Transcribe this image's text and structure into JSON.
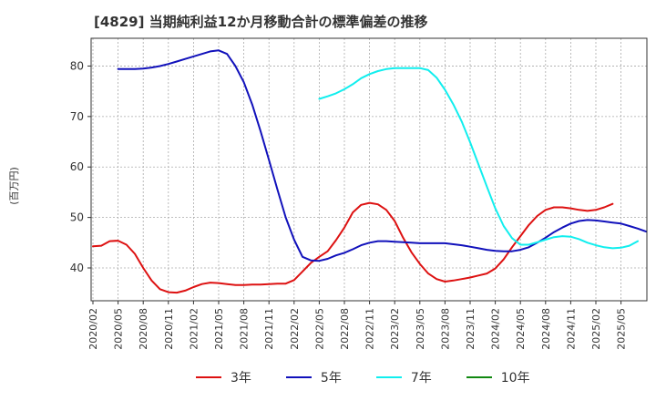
{
  "chart_data": {
    "type": "line",
    "title": "[4829]  当期純利益12か月移動合計の標準偏差の推移",
    "xlabel": "",
    "ylabel": "(百万円)",
    "ylim": [
      33.5,
      85.5
    ],
    "yticks": [
      40,
      50,
      60,
      70,
      80
    ],
    "x_start": "2020/02",
    "x_tick_labels": [
      "2020/02",
      "2020/05",
      "2020/08",
      "2020/11",
      "2021/02",
      "2021/05",
      "2021/08",
      "2021/11",
      "2022/02",
      "2022/05",
      "2022/08",
      "2022/11",
      "2023/02",
      "2023/05",
      "2023/08",
      "2023/11",
      "2024/02",
      "2024/05",
      "2024/08",
      "2024/11",
      "2025/02",
      "2025/05"
    ],
    "grid": true,
    "legend_position": "bottom",
    "series": [
      {
        "name": "3年",
        "color": "#dd1111",
        "start": "2020/02",
        "values": [
          44.3,
          44.4,
          45.3,
          45.4,
          44.6,
          42.8,
          40.0,
          37.5,
          35.8,
          35.2,
          35.1,
          35.5,
          36.2,
          36.8,
          37.1,
          37.0,
          36.8,
          36.6,
          36.6,
          36.7,
          36.7,
          36.8,
          36.9,
          36.9,
          37.6,
          39.3,
          41.0,
          42.2,
          43.3,
          45.5,
          48.0,
          51.0,
          52.5,
          52.9,
          52.6,
          51.5,
          49.3,
          46.0,
          43.1,
          40.8,
          38.9,
          37.8,
          37.3,
          37.5,
          37.8,
          38.1,
          38.5,
          38.9,
          39.9,
          41.7,
          44.1,
          46.3,
          48.5,
          50.3,
          51.5,
          52.0,
          52.0,
          51.8,
          51.5,
          51.3,
          51.5,
          52.0,
          52.7
        ]
      },
      {
        "name": "5年",
        "color": "#1111bb",
        "start": "2020/05",
        "values": [
          79.4,
          79.4,
          79.4,
          79.5,
          79.7,
          80.0,
          80.4,
          80.9,
          81.4,
          81.9,
          82.4,
          82.9,
          83.1,
          82.4,
          80.0,
          76.8,
          72.4,
          67.1,
          61.4,
          55.6,
          50.0,
          45.6,
          42.2,
          41.5,
          41.4,
          41.8,
          42.5,
          43.0,
          43.7,
          44.5,
          45.0,
          45.3,
          45.3,
          45.2,
          45.1,
          45.0,
          44.9,
          44.9,
          44.9,
          44.9,
          44.7,
          44.5,
          44.2,
          43.9,
          43.6,
          43.4,
          43.3,
          43.3,
          43.6,
          44.1,
          45.0,
          46.0,
          47.1,
          48.0,
          48.8,
          49.3,
          49.5,
          49.4,
          49.2,
          49.0,
          48.8,
          48.3,
          47.8,
          47.2
        ]
      },
      {
        "name": "7年",
        "color": "#11eeee",
        "start": "2022/05",
        "values": [
          73.5,
          74.0,
          74.6,
          75.4,
          76.4,
          77.6,
          78.4,
          79.0,
          79.4,
          79.6,
          79.6,
          79.6,
          79.6,
          79.2,
          77.7,
          75.3,
          72.4,
          69.0,
          64.9,
          60.5,
          56.1,
          51.8,
          48.3,
          45.9,
          44.6,
          44.6,
          45.1,
          45.6,
          46.1,
          46.3,
          46.2,
          45.7,
          45.0,
          44.5,
          44.1,
          43.9,
          44.0,
          44.4,
          45.3
        ]
      },
      {
        "name": "10年",
        "color": "#118811",
        "start": "",
        "values": []
      }
    ]
  }
}
